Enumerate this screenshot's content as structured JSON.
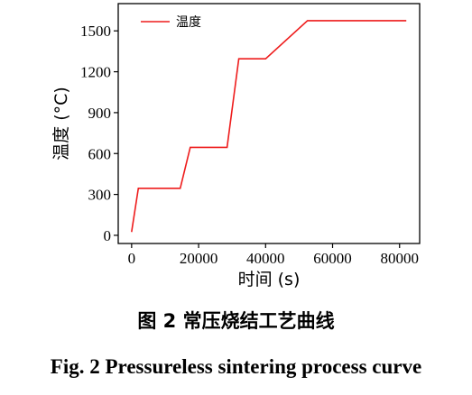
{
  "chart_data": {
    "type": "line",
    "xlabel": "时间 (s)",
    "ylabel": "温度 (°C)",
    "xlim": [
      -4000,
      86000
    ],
    "ylim": [
      -60,
      1700
    ],
    "x_ticks": [
      0,
      20000,
      40000,
      60000,
      80000
    ],
    "y_ticks": [
      0,
      300,
      600,
      900,
      1200,
      1500
    ],
    "x_tick_labels": [
      "0",
      "20000",
      "40000",
      "60000",
      "80000"
    ],
    "y_tick_labels": [
      "0",
      "300",
      "600",
      "900",
      "1200",
      "1500"
    ],
    "legend_position": "top-left",
    "grid": false,
    "series": [
      {
        "name": "温度",
        "color": "#ee1c1c",
        "x": [
          0,
          2000,
          14500,
          17500,
          28500,
          32000,
          40000,
          52500,
          82000
        ],
        "y": [
          25,
          345,
          345,
          645,
          645,
          1295,
          1295,
          1575,
          1575
        ]
      }
    ]
  },
  "caption": {
    "cn": "图 2  常压烧结工艺曲线",
    "en": "Fig. 2 Pressureless sintering process curve"
  }
}
